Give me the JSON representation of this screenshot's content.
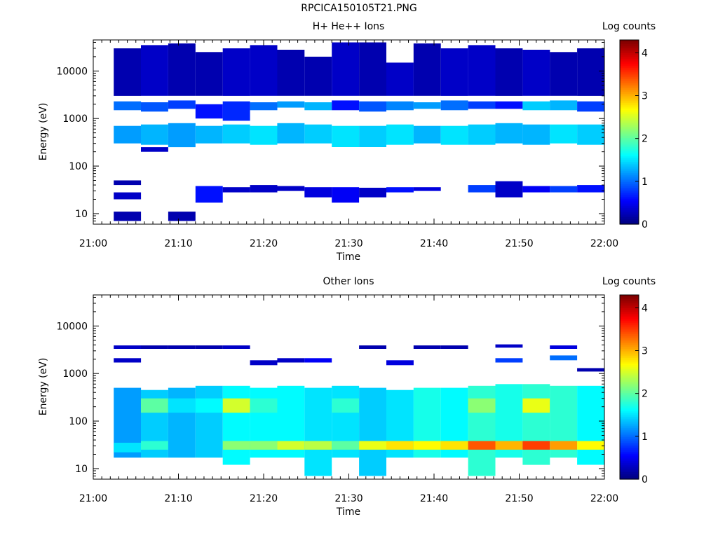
{
  "figure_title": "RPCICA150105T21.PNG",
  "chart_data": [
    {
      "type": "heatmap",
      "title": "H+ He++ Ions",
      "xlabel": "Time",
      "ylabel": "Energy (eV)",
      "colorbar_label": "Log counts",
      "x_ticks": [
        "21:00",
        "21:10",
        "21:20",
        "21:30",
        "21:40",
        "21:50",
        "22:00"
      ],
      "x_range": [
        "21:00",
        "22:00"
      ],
      "y_scale": "log",
      "y_ticks": [
        10,
        100,
        1000,
        10000
      ],
      "ylim": [
        6,
        45000
      ],
      "colorbar_ticks": [
        0,
        1,
        2,
        3,
        4
      ],
      "colorbar_range": [
        0,
        4.3
      ],
      "time_bins_start_min": [
        2.4,
        5.6,
        8.8,
        12.0,
        15.2,
        18.4,
        21.6,
        24.8,
        28.0,
        31.2,
        34.4,
        37.6,
        40.8,
        44.0,
        47.2,
        50.4,
        53.6,
        56.8
      ],
      "bin_width_min": 3.2,
      "cells": [
        [
          0,
          300,
          700,
          1.2
        ],
        [
          0,
          1500,
          2300,
          1.0
        ],
        [
          0,
          20,
          28,
          0.3
        ],
        [
          0,
          7,
          11,
          0.2
        ],
        [
          0,
          40,
          50,
          0.2
        ],
        [
          0,
          3000,
          30000,
          0.2
        ],
        [
          1,
          280,
          750,
          1.3
        ],
        [
          1,
          1400,
          2200,
          0.9
        ],
        [
          1,
          200,
          250,
          0.3
        ],
        [
          1,
          3000,
          35000,
          0.3
        ],
        [
          2,
          250,
          800,
          1.2
        ],
        [
          2,
          1600,
          2400,
          0.8
        ],
        [
          2,
          7,
          11,
          0.2
        ],
        [
          2,
          3000,
          38000,
          0.2
        ],
        [
          3,
          300,
          700,
          1.3
        ],
        [
          3,
          1000,
          2000,
          0.6
        ],
        [
          3,
          17,
          38,
          0.6
        ],
        [
          3,
          3000,
          25000,
          0.2
        ],
        [
          4,
          300,
          750,
          1.4
        ],
        [
          4,
          900,
          2300,
          0.7
        ],
        [
          4,
          28,
          36,
          0.3
        ],
        [
          4,
          3000,
          30000,
          0.3
        ],
        [
          5,
          280,
          700,
          1.5
        ],
        [
          5,
          1500,
          2200,
          1.0
        ],
        [
          5,
          28,
          40,
          0.3
        ],
        [
          5,
          3000,
          35000,
          0.3
        ],
        [
          6,
          300,
          800,
          1.3
        ],
        [
          6,
          1700,
          2300,
          1.2
        ],
        [
          6,
          30,
          38,
          0.3
        ],
        [
          6,
          3000,
          28000,
          0.2
        ],
        [
          7,
          300,
          750,
          1.4
        ],
        [
          7,
          1500,
          2200,
          1.3
        ],
        [
          7,
          22,
          36,
          0.4
        ],
        [
          7,
          3000,
          20000,
          0.2
        ],
        [
          8,
          250,
          700,
          1.5
        ],
        [
          8,
          1500,
          2400,
          0.6
        ],
        [
          8,
          17,
          36,
          0.5
        ],
        [
          8,
          3000,
          40000,
          0.3
        ],
        [
          9,
          250,
          700,
          1.4
        ],
        [
          9,
          1400,
          2300,
          0.9
        ],
        [
          9,
          22,
          35,
          0.3
        ],
        [
          9,
          3000,
          40000,
          0.2
        ],
        [
          10,
          280,
          750,
          1.5
        ],
        [
          10,
          1500,
          2300,
          1.1
        ],
        [
          10,
          28,
          36,
          0.6
        ],
        [
          10,
          3000,
          15000,
          0.3
        ],
        [
          11,
          300,
          700,
          1.3
        ],
        [
          11,
          1600,
          2200,
          1.2
        ],
        [
          11,
          30,
          36,
          0.4
        ],
        [
          11,
          3000,
          38000,
          0.2
        ],
        [
          12,
          280,
          700,
          1.5
        ],
        [
          12,
          1500,
          2400,
          1.0
        ],
        [
          12,
          3000,
          30000,
          0.3
        ],
        [
          13,
          280,
          750,
          1.4
        ],
        [
          13,
          1600,
          2300,
          0.8
        ],
        [
          13,
          28,
          40,
          0.8
        ],
        [
          13,
          3000,
          35000,
          0.3
        ],
        [
          14,
          300,
          800,
          1.3
        ],
        [
          14,
          1600,
          2300,
          0.6
        ],
        [
          14,
          22,
          48,
          0.3
        ],
        [
          14,
          3000,
          30000,
          0.2
        ],
        [
          15,
          280,
          750,
          1.3
        ],
        [
          15,
          1500,
          2300,
          1.4
        ],
        [
          15,
          28,
          38,
          0.5
        ],
        [
          15,
          3000,
          28000,
          0.3
        ],
        [
          16,
          300,
          750,
          1.5
        ],
        [
          16,
          1500,
          2400,
          1.3
        ],
        [
          16,
          28,
          38,
          0.8
        ],
        [
          16,
          3000,
          25000,
          0.2
        ],
        [
          17,
          280,
          750,
          1.4
        ],
        [
          17,
          1400,
          2300,
          0.8
        ],
        [
          17,
          28,
          40,
          0.6
        ],
        [
          17,
          3000,
          30000,
          0.2
        ]
      ]
    },
    {
      "type": "heatmap",
      "title": "Other Ions",
      "xlabel": "Time",
      "ylabel": "Energy (eV)",
      "colorbar_label": "Log counts",
      "x_ticks": [
        "21:00",
        "21:10",
        "21:20",
        "21:30",
        "21:40",
        "21:50",
        "22:00"
      ],
      "x_range": [
        "21:00",
        "22:00"
      ],
      "y_scale": "log",
      "y_ticks": [
        10,
        100,
        1000,
        10000
      ],
      "ylim": [
        6,
        45000
      ],
      "colorbar_ticks": [
        0,
        1,
        2,
        3,
        4
      ],
      "colorbar_range": [
        0,
        4.3
      ],
      "time_bins_start_min": [
        2.4,
        5.6,
        8.8,
        12.0,
        15.2,
        18.4,
        21.6,
        24.8,
        28.0,
        31.2,
        34.4,
        37.6,
        40.8,
        44.0,
        47.2,
        50.4,
        53.6,
        56.8
      ],
      "bin_width_min": 3.2,
      "cells": [
        [
          0,
          17,
          500,
          1.2
        ],
        [
          0,
          22,
          35,
          1.5
        ],
        [
          0,
          3300,
          3900,
          0.3
        ],
        [
          0,
          1700,
          2100,
          0.3
        ],
        [
          1,
          17,
          450,
          1.4
        ],
        [
          1,
          25,
          38,
          1.8
        ],
        [
          1,
          150,
          300,
          2.0
        ],
        [
          1,
          3300,
          3900,
          0.2
        ],
        [
          2,
          17,
          500,
          1.3
        ],
        [
          2,
          150,
          300,
          1.5
        ],
        [
          2,
          3300,
          3900,
          0.2
        ],
        [
          3,
          17,
          550,
          1.4
        ],
        [
          3,
          150,
          300,
          1.6
        ],
        [
          3,
          3300,
          3900,
          0.2
        ],
        [
          4,
          12,
          550,
          1.6
        ],
        [
          4,
          150,
          300,
          2.5
        ],
        [
          4,
          25,
          38,
          2.2
        ],
        [
          4,
          3300,
          3900,
          0.3
        ],
        [
          5,
          17,
          500,
          1.6
        ],
        [
          5,
          150,
          300,
          1.8
        ],
        [
          5,
          25,
          38,
          2.2
        ],
        [
          5,
          1500,
          1900,
          0.3
        ],
        [
          6,
          17,
          550,
          1.6
        ],
        [
          6,
          25,
          38,
          2.5
        ],
        [
          6,
          1700,
          2100,
          0.3
        ],
        [
          7,
          7,
          500,
          1.5
        ],
        [
          7,
          25,
          38,
          2.4
        ],
        [
          7,
          1700,
          2100,
          0.5
        ],
        [
          8,
          17,
          550,
          1.5
        ],
        [
          8,
          25,
          38,
          2.0
        ],
        [
          8,
          150,
          300,
          1.8
        ],
        [
          9,
          7,
          500,
          1.4
        ],
        [
          9,
          25,
          38,
          2.6
        ],
        [
          9,
          3300,
          3900,
          0.2
        ],
        [
          10,
          17,
          450,
          1.5
        ],
        [
          10,
          25,
          38,
          2.8
        ],
        [
          10,
          1500,
          1900,
          0.4
        ],
        [
          11,
          17,
          500,
          1.7
        ],
        [
          11,
          25,
          38,
          2.7
        ],
        [
          11,
          3300,
          3900,
          0.2
        ],
        [
          12,
          17,
          500,
          1.6
        ],
        [
          12,
          25,
          38,
          2.8
        ],
        [
          12,
          3300,
          3900,
          0.2
        ],
        [
          13,
          7,
          550,
          1.8
        ],
        [
          13,
          25,
          38,
          3.4
        ],
        [
          13,
          150,
          300,
          2.2
        ],
        [
          14,
          17,
          600,
          1.7
        ],
        [
          14,
          25,
          38,
          3.0
        ],
        [
          14,
          3500,
          4100,
          0.3
        ],
        [
          14,
          1700,
          2100,
          0.8
        ],
        [
          15,
          12,
          600,
          1.8
        ],
        [
          15,
          25,
          38,
          3.5
        ],
        [
          15,
          150,
          300,
          2.6
        ],
        [
          16,
          17,
          550,
          1.8
        ],
        [
          16,
          25,
          38,
          3.1
        ],
        [
          16,
          1900,
          2400,
          1.0
        ],
        [
          16,
          3300,
          3900,
          0.4
        ],
        [
          17,
          12,
          550,
          1.6
        ],
        [
          17,
          25,
          38,
          2.7
        ],
        [
          17,
          1100,
          1300,
          0.2
        ]
      ]
    }
  ]
}
